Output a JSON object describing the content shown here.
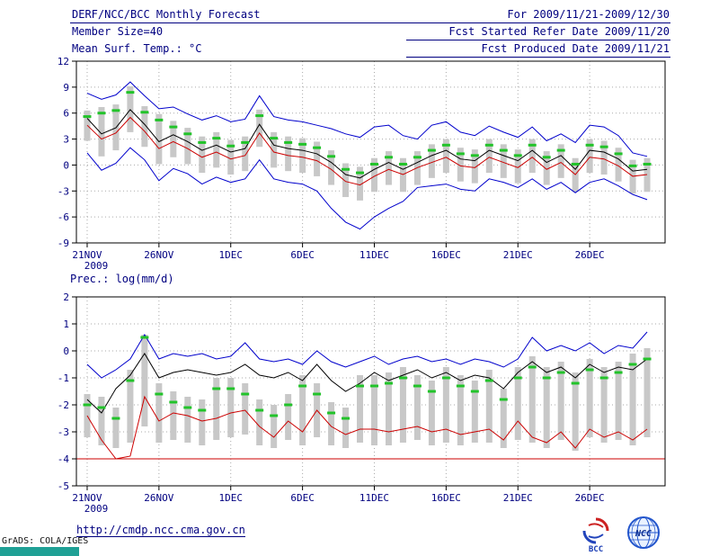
{
  "header": {
    "title": "DERF/NCC/BCC Monthly Forecast",
    "date_range": "For 2009/11/21-2009/12/30",
    "member_size": "Member Size=40",
    "refer_date": "Fcst Started Refer Date 2009/11/20",
    "produced_date": "Fcst Produced Date 2009/11/21"
  },
  "footer": {
    "url": "http://cmdp.ncc.cma.gov.cn",
    "grads_credit": "GrADS: COLA/IGES",
    "logo_bcc": "BCC",
    "logo_ncc": "NCC"
  },
  "colors": {
    "text": "#000080",
    "blue_line": "#0000cc",
    "black_line": "#000000",
    "red_line": "#cc0000",
    "green_marker": "#22c32a",
    "spread_bar": "#c8c8c8",
    "grid": "#aaaaaa",
    "teal_strip": "#1fa095"
  },
  "chart_data": [
    {
      "type": "line",
      "title": "Mean Surf. Temp.: °C",
      "n_days": 40,
      "x_tick_labels": [
        "21NOV",
        "26NOV",
        "1DEC",
        "6DEC",
        "11DEC",
        "16DEC",
        "21DEC",
        "26DEC"
      ],
      "x_tick_positions": [
        0,
        5,
        10,
        15,
        20,
        25,
        30,
        35
      ],
      "x_year_label": "2009",
      "ylim": [
        -9,
        12
      ],
      "ytick_step": 3,
      "grid": true,
      "series": [
        {
          "name": "upper-envelope",
          "color": "#0000cc",
          "values": [
            8.3,
            7.6,
            8.1,
            9.6,
            8.0,
            6.5,
            6.7,
            5.9,
            5.2,
            5.7,
            5.0,
            5.3,
            8.0,
            5.6,
            5.2,
            5.0,
            4.6,
            4.2,
            3.6,
            3.2,
            4.4,
            4.6,
            3.4,
            3.0,
            4.6,
            5.0,
            3.8,
            3.4,
            4.5,
            3.8,
            3.2,
            4.4,
            2.8,
            3.6,
            2.6,
            4.6,
            4.4,
            3.4,
            1.4,
            1.0
          ]
        },
        {
          "name": "ensemble-mean",
          "color": "#000000",
          "values": [
            5.4,
            3.6,
            4.3,
            6.4,
            4.7,
            2.7,
            3.5,
            2.7,
            1.7,
            2.3,
            1.5,
            1.9,
            4.7,
            2.3,
            1.9,
            1.7,
            1.3,
            0.3,
            -1.1,
            -1.5,
            -0.5,
            0.3,
            -0.5,
            0.3,
            1.1,
            1.7,
            0.7,
            0.5,
            1.7,
            1.1,
            0.5,
            1.7,
            0.3,
            1.1,
            -0.5,
            1.7,
            1.5,
            0.7,
            -0.7,
            -0.5
          ]
        },
        {
          "name": "red-reference-line",
          "color": "#cc0000",
          "values": [
            4.6,
            3.0,
            3.7,
            5.5,
            3.9,
            1.9,
            2.7,
            1.9,
            0.9,
            1.5,
            0.7,
            1.1,
            3.7,
            1.5,
            1.1,
            0.9,
            0.5,
            -0.5,
            -1.9,
            -2.3,
            -1.3,
            -0.5,
            -1.1,
            -0.3,
            0.3,
            0.9,
            -0.1,
            -0.3,
            0.9,
            0.3,
            -0.3,
            0.9,
            -0.5,
            0.3,
            -1.1,
            0.9,
            0.7,
            -0.1,
            -1.3,
            -1.1
          ]
        },
        {
          "name": "lower-envelope",
          "color": "#0000cc",
          "values": [
            1.4,
            -0.6,
            0.2,
            2.0,
            0.6,
            -1.8,
            -0.4,
            -1.0,
            -2.2,
            -1.4,
            -2.0,
            -1.6,
            0.6,
            -1.6,
            -2.0,
            -2.2,
            -3.0,
            -5.0,
            -6.6,
            -7.4,
            -6.0,
            -5.0,
            -4.2,
            -2.6,
            -2.4,
            -2.2,
            -2.8,
            -3.0,
            -1.6,
            -2.0,
            -2.6,
            -1.6,
            -2.8,
            -2.0,
            -3.2,
            -2.0,
            -1.6,
            -2.4,
            -3.4,
            -4.0
          ]
        }
      ],
      "bars": {
        "name": "ensemble-spread",
        "color": "#c8c8c8",
        "low": [
          2.8,
          1.0,
          1.7,
          3.8,
          2.1,
          0.1,
          0.9,
          0.1,
          -0.9,
          -0.3,
          -1.1,
          -0.7,
          2.1,
          -0.3,
          -0.7,
          -0.9,
          -1.3,
          -2.3,
          -3.7,
          -4.1,
          -3.1,
          -2.3,
          -3.1,
          -2.3,
          -1.5,
          -0.9,
          -1.9,
          -2.1,
          -0.9,
          -1.5,
          -2.1,
          -0.9,
          -2.3,
          -1.5,
          -3.1,
          -0.9,
          -1.1,
          -1.9,
          -3.3,
          -3.1
        ],
        "high": [
          6.3,
          6.7,
          7.0,
          9.1,
          6.8,
          5.9,
          5.1,
          4.3,
          3.3,
          3.8,
          2.9,
          3.3,
          6.4,
          3.8,
          3.3,
          3.1,
          2.7,
          1.7,
          0.2,
          -0.2,
          0.8,
          1.6,
          0.8,
          1.6,
          2.4,
          3.0,
          2.0,
          1.8,
          3.0,
          2.4,
          1.8,
          3.0,
          1.6,
          2.4,
          0.8,
          3.0,
          2.8,
          2.0,
          0.6,
          0.8
        ]
      },
      "markers": {
        "name": "green-median-marks",
        "color": "#22c32a",
        "values": [
          5.6,
          6.0,
          6.3,
          8.4,
          6.1,
          5.2,
          4.4,
          3.6,
          2.6,
          3.1,
          2.2,
          2.6,
          5.7,
          3.1,
          2.6,
          2.4,
          2.0,
          1.0,
          -0.5,
          -0.9,
          0.1,
          0.9,
          0.1,
          0.9,
          1.7,
          2.3,
          1.3,
          1.1,
          2.3,
          1.7,
          1.1,
          2.3,
          0.9,
          1.7,
          0.1,
          2.3,
          2.1,
          1.3,
          -0.1,
          0.1
        ]
      }
    },
    {
      "type": "line",
      "title": "Prec.: log(mm/d)",
      "n_days": 40,
      "x_tick_labels": [
        "21NOV",
        "26NOV",
        "1DEC",
        "6DEC",
        "11DEC",
        "16DEC",
        "21DEC",
        "26DEC"
      ],
      "x_tick_positions": [
        0,
        5,
        10,
        15,
        20,
        25,
        30,
        35
      ],
      "x_year_label": "2009",
      "ylim": [
        -5,
        2
      ],
      "ytick_step": 1,
      "grid": true,
      "baseline": {
        "value": -4,
        "color": "#cc0000"
      },
      "series": [
        {
          "name": "upper-envelope",
          "color": "#0000cc",
          "values": [
            -0.5,
            -1.0,
            -0.7,
            -0.3,
            0.6,
            -0.3,
            -0.1,
            -0.2,
            -0.1,
            -0.3,
            -0.2,
            0.3,
            -0.3,
            -0.4,
            -0.3,
            -0.5,
            0.0,
            -0.4,
            -0.6,
            -0.4,
            -0.2,
            -0.5,
            -0.3,
            -0.2,
            -0.4,
            -0.3,
            -0.5,
            -0.3,
            -0.4,
            -0.6,
            -0.3,
            0.5,
            0.0,
            0.2,
            0.0,
            0.3,
            -0.1,
            0.2,
            0.1,
            0.7
          ]
        },
        {
          "name": "ensemble-mean",
          "color": "#000000",
          "values": [
            -1.8,
            -2.3,
            -1.4,
            -0.9,
            -0.1,
            -1.0,
            -0.8,
            -0.7,
            -0.8,
            -0.9,
            -0.8,
            -0.5,
            -0.9,
            -1.0,
            -0.8,
            -1.1,
            -0.5,
            -1.1,
            -1.5,
            -1.2,
            -0.8,
            -1.1,
            -0.9,
            -0.7,
            -1.0,
            -0.8,
            -1.1,
            -0.9,
            -1.0,
            -1.4,
            -0.8,
            -0.4,
            -0.8,
            -0.6,
            -1.0,
            -0.5,
            -0.8,
            -0.6,
            -0.7,
            -0.3
          ]
        },
        {
          "name": "red-reference-line",
          "color": "#cc0000",
          "values": [
            -2.4,
            -3.3,
            -4.0,
            -3.9,
            -1.7,
            -2.6,
            -2.3,
            -2.4,
            -2.6,
            -2.5,
            -2.3,
            -2.2,
            -2.8,
            -3.2,
            -2.6,
            -3.0,
            -2.2,
            -2.8,
            -3.1,
            -2.9,
            -2.9,
            -3.0,
            -2.9,
            -2.8,
            -3.0,
            -2.9,
            -3.1,
            -3.0,
            -2.9,
            -3.3,
            -2.6,
            -3.2,
            -3.4,
            -3.0,
            -3.6,
            -2.9,
            -3.2,
            -3.0,
            -3.3,
            -2.9
          ]
        }
      ],
      "bars": {
        "name": "ensemble-spread",
        "color": "#c8c8c8",
        "low": [
          -3.2,
          -3.5,
          -3.6,
          -3.4,
          -2.8,
          -3.4,
          -3.3,
          -3.4,
          -3.5,
          -3.3,
          -3.2,
          -3.1,
          -3.5,
          -3.6,
          -3.3,
          -3.5,
          -3.2,
          -3.5,
          -3.6,
          -3.4,
          -3.5,
          -3.5,
          -3.4,
          -3.3,
          -3.5,
          -3.4,
          -3.5,
          -3.4,
          -3.4,
          -3.6,
          -3.3,
          -3.4,
          -3.6,
          -3.3,
          -3.7,
          -3.2,
          -3.4,
          -3.3,
          -3.5,
          -3.2
        ],
        "high": [
          -1.6,
          -1.7,
          -2.1,
          -0.7,
          0.6,
          -1.2,
          -1.5,
          -1.7,
          -1.8,
          -1.0,
          -1.0,
          -1.2,
          -1.8,
          -2.0,
          -1.6,
          -0.9,
          -1.2,
          -1.9,
          -2.1,
          -0.9,
          -0.9,
          -0.8,
          -0.6,
          -0.9,
          -1.1,
          -0.6,
          -0.9,
          -1.1,
          -0.7,
          -1.4,
          -0.6,
          -0.2,
          -0.6,
          -0.4,
          -0.8,
          -0.3,
          -0.6,
          -0.4,
          -0.1,
          0.1
        ]
      },
      "markers": {
        "name": "green-median-marks",
        "color": "#22c32a",
        "values": [
          -2.0,
          -2.1,
          -2.5,
          -1.1,
          0.5,
          -1.6,
          -1.9,
          -2.1,
          -2.2,
          -1.4,
          -1.4,
          -1.6,
          -2.2,
          -2.4,
          -2.0,
          -1.3,
          -1.6,
          -2.3,
          -2.5,
          -1.3,
          -1.3,
          -1.2,
          -1.0,
          -1.3,
          -1.5,
          -1.0,
          -1.3,
          -1.5,
          -1.1,
          -1.8,
          -1.0,
          -0.6,
          -1.0,
          -0.8,
          -1.2,
          -0.7,
          -1.0,
          -0.8,
          -0.5,
          -0.3
        ]
      }
    }
  ]
}
